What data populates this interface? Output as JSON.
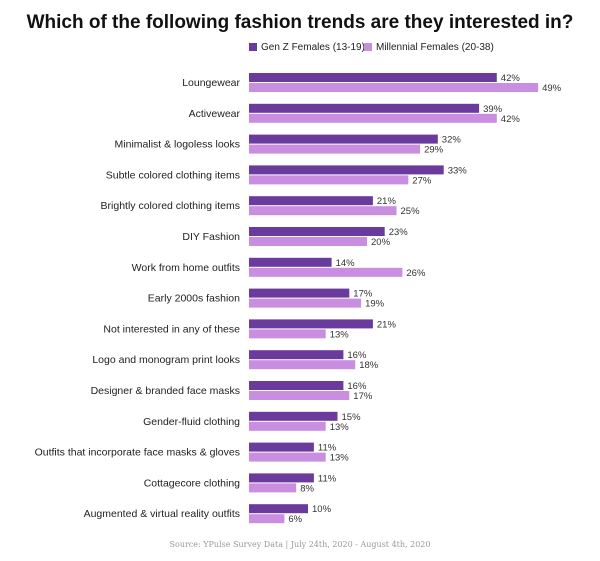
{
  "chart_data": {
    "type": "bar",
    "orientation": "horizontal",
    "title": "Which of the following fashion trends are they interested in?",
    "source": "Source: YPulse Survey Data | July 24th, 2020 - August 4th, 2020",
    "legend_position": "top-right",
    "grid": false,
    "value_suffix": "%",
    "xlim": [
      0,
      50
    ],
    "categories": [
      "Loungewear",
      "Activewear",
      "Minimalist & logoless looks",
      "Subtle colored clothing items",
      "Brightly colored clothing items",
      "DIY Fashion",
      "Work from home outfits",
      "Early 2000s fashion",
      "Not interested in any of these",
      "Logo and monogram print looks",
      "Designer & branded face masks",
      "Gender-fluid clothing",
      "Outfits that incorporate face masks & gloves",
      "Cottagecore clothing",
      "Augmented & virtual reality outfits"
    ],
    "series": [
      {
        "name": "Gen Z Females (13-19)",
        "color": "#6a3a9c",
        "values": [
          42,
          39,
          32,
          33,
          21,
          23,
          14,
          17,
          21,
          16,
          16,
          15,
          11,
          11,
          10
        ]
      },
      {
        "name": "Millennial Females (20-38)",
        "color": "#c98ee0",
        "values": [
          49,
          42,
          29,
          27,
          25,
          20,
          26,
          19,
          13,
          18,
          17,
          13,
          13,
          8,
          6
        ]
      }
    ]
  }
}
